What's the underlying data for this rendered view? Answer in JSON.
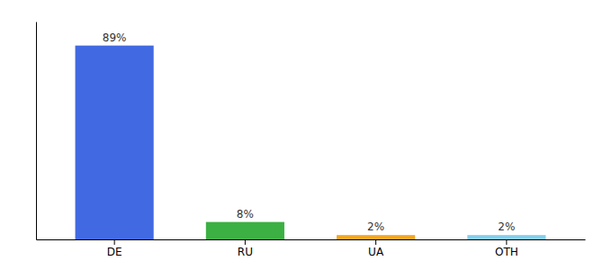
{
  "chart_data": {
    "type": "bar",
    "categories": [
      "DE",
      "RU",
      "UA",
      "OTH"
    ],
    "values": [
      89,
      8,
      2,
      2
    ],
    "value_labels": [
      "89%",
      "8%",
      "2%",
      "2%"
    ],
    "colors": [
      "#4169e1",
      "#3cb043",
      "#f5a623",
      "#87ceeb"
    ],
    "ylim": [
      0,
      100
    ],
    "data_labels": true,
    "tick_labels": "x",
    "grid": false
  }
}
